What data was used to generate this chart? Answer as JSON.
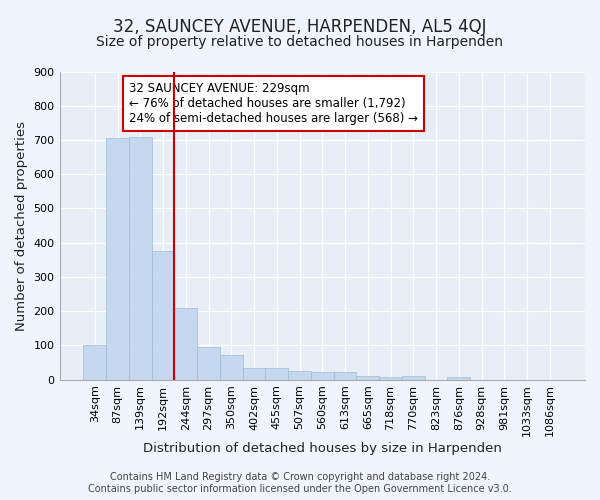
{
  "title": "32, SAUNCEY AVENUE, HARPENDEN, AL5 4QJ",
  "subtitle": "Size of property relative to detached houses in Harpenden",
  "xlabel": "Distribution of detached houses by size in Harpenden",
  "ylabel": "Number of detached properties",
  "footer_line1": "Contains HM Land Registry data © Crown copyright and database right 2024.",
  "footer_line2": "Contains public sector information licensed under the Open Government Licence v3.0.",
  "categories": [
    "34sqm",
    "87sqm",
    "139sqm",
    "192sqm",
    "244sqm",
    "297sqm",
    "350sqm",
    "402sqm",
    "455sqm",
    "507sqm",
    "560sqm",
    "613sqm",
    "665sqm",
    "718sqm",
    "770sqm",
    "823sqm",
    "876sqm",
    "928sqm",
    "981sqm",
    "1033sqm",
    "1086sqm"
  ],
  "values": [
    100,
    707,
    710,
    375,
    208,
    95,
    72,
    33,
    33,
    25,
    22,
    22,
    10,
    8,
    10,
    0,
    8,
    0,
    0,
    0,
    0
  ],
  "bar_color": "#c5d8ef",
  "bar_edge_color": "#a0bcd8",
  "vline_x_index": 4,
  "vline_color": "#cc0000",
  "annotation_text": "32 SAUNCEY AVENUE: 229sqm\n← 76% of detached houses are smaller (1,792)\n24% of semi-detached houses are larger (568) →",
  "annotation_box_color": "#ffffff",
  "annotation_box_edge_color": "#cc0000",
  "ylim": [
    0,
    900
  ],
  "yticks": [
    0,
    100,
    200,
    300,
    400,
    500,
    600,
    700,
    800,
    900
  ],
  "background_color": "#f0f4fc",
  "plot_background_color": "#e8eef8",
  "grid_color": "#ffffff",
  "title_fontsize": 12,
  "subtitle_fontsize": 10,
  "label_fontsize": 9.5,
  "tick_fontsize": 8,
  "footer_fontsize": 7,
  "annotation_fontsize": 8.5
}
